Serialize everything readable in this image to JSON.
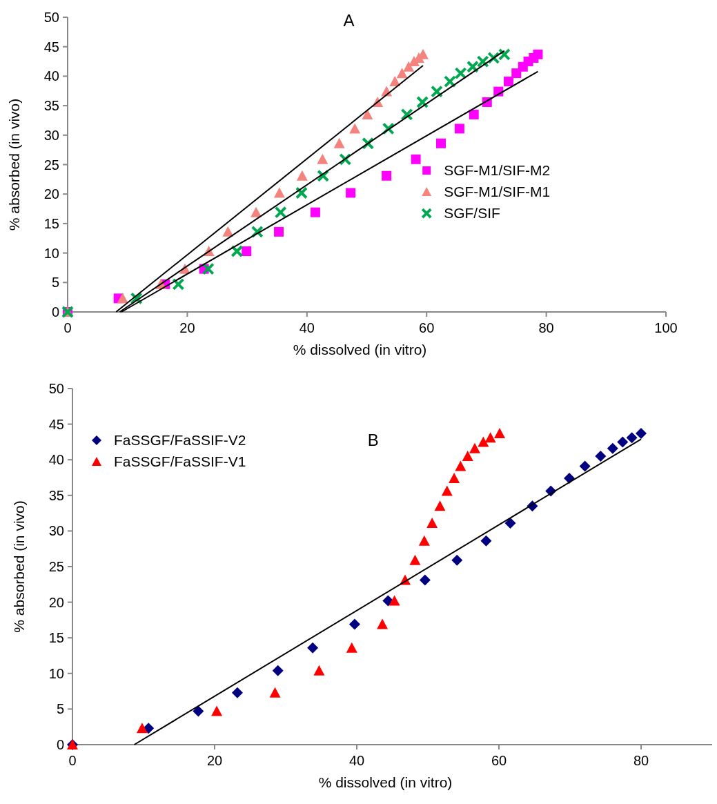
{
  "chart_data": [
    {
      "type": "scatter",
      "title": "A",
      "xlabel": "% dissolved (in vitro)",
      "ylabel": "% absorbed (in vivo)",
      "xlim": [
        0,
        100
      ],
      "xticks": [
        0,
        20,
        40,
        60,
        80,
        100
      ],
      "ylim": [
        0,
        50
      ],
      "yticks": [
        0,
        5,
        10,
        15,
        20,
        25,
        30,
        35,
        40,
        45,
        50
      ],
      "legend": "right",
      "series": [
        {
          "name": "SGF-M1/SIF-M2",
          "color": "#ff00ff",
          "marker": "square",
          "x": [
            0,
            8.5,
            16.3,
            22.8,
            29.9,
            35.3,
            41.4,
            47.3,
            53.3,
            58.2,
            62.4,
            65.5,
            67.9,
            70.1,
            72.0,
            73.7,
            75.0,
            76.1,
            77.0,
            77.9,
            78.6
          ],
          "values": [
            0,
            2.3,
            4.7,
            7.3,
            10.3,
            13.6,
            16.9,
            20.2,
            23.1,
            25.9,
            28.6,
            31.1,
            33.5,
            35.6,
            37.4,
            39.1,
            40.5,
            41.6,
            42.5,
            43.1,
            43.7
          ]
        },
        {
          "name": "SGF-M1/SIF-M1",
          "color": "#f4837d",
          "marker": "triangle",
          "x": [
            0,
            9.2,
            15.6,
            19.6,
            23.6,
            26.8,
            31.5,
            35.4,
            39.2,
            42.6,
            45.4,
            48.0,
            50.1,
            51.8,
            53.3,
            54.7,
            55.9,
            57.0,
            57.9,
            58.7,
            59.4
          ],
          "values": [
            0,
            2.3,
            4.7,
            7.3,
            10.3,
            13.6,
            16.9,
            20.2,
            23.1,
            25.9,
            28.6,
            31.1,
            33.5,
            35.6,
            37.4,
            39.1,
            40.5,
            41.6,
            42.5,
            43.1,
            43.7
          ]
        },
        {
          "name": "SGF/SIF",
          "color": "#00a84f",
          "marker": "cross",
          "x": [
            0,
            11.5,
            18.5,
            23.5,
            28.3,
            31.7,
            35.6,
            39.1,
            42.7,
            46.4,
            50.2,
            53.6,
            56.7,
            59.3,
            61.7,
            63.9,
            65.7,
            67.7,
            69.4,
            71.2,
            73.0
          ],
          "values": [
            0,
            2.3,
            4.7,
            7.3,
            10.3,
            13.6,
            16.9,
            20.2,
            23.1,
            25.9,
            28.6,
            31.1,
            33.5,
            35.6,
            37.4,
            39.1,
            40.5,
            41.6,
            42.5,
            43.1,
            43.7
          ]
        },
        {
          "type": "line",
          "color": "#000000",
          "marker": "none",
          "x": [
            8.1,
            59.4
          ],
          "values": [
            0,
            41.8
          ]
        },
        {
          "type": "line",
          "color": "#000000",
          "marker": "none",
          "x": [
            8.7,
            73.0
          ],
          "values": [
            0,
            44.3
          ]
        },
        {
          "type": "line",
          "color": "#000000",
          "marker": "none",
          "x": [
            9.0,
            78.6
          ],
          "values": [
            0,
            40.8
          ]
        }
      ]
    },
    {
      "type": "scatter",
      "title": "B",
      "xlabel": "% dissolved (in vitro)",
      "ylabel": "% absorbed (in vivo)",
      "xlim": [
        0,
        90
      ],
      "xticks": [
        0,
        20,
        40,
        60,
        80
      ],
      "ylim": [
        0,
        50
      ],
      "yticks": [
        0,
        5,
        10,
        15,
        20,
        25,
        30,
        35,
        40,
        45,
        50
      ],
      "legend": "top left",
      "series": [
        {
          "name": "FaSSGF/FaSSIF-V2",
          "color": "#000080",
          "marker": "diamond",
          "x": [
            0,
            10.7,
            17.7,
            23.2,
            28.9,
            33.8,
            39.7,
            44.4,
            49.6,
            54.1,
            58.2,
            61.6,
            64.7,
            67.3,
            69.9,
            72.1,
            74.3,
            76.0,
            77.4,
            78.7,
            80.0
          ],
          "values": [
            0,
            2.3,
            4.7,
            7.3,
            10.4,
            13.6,
            16.9,
            20.2,
            23.1,
            25.9,
            28.6,
            31.1,
            33.5,
            35.6,
            37.4,
            39.1,
            40.5,
            41.6,
            42.5,
            43.1,
            43.7
          ]
        },
        {
          "name": "FaSSGF/FaSSIF-V1",
          "color": "#ff0000",
          "marker": "triangle",
          "x": [
            0,
            9.8,
            20.3,
            28.5,
            34.7,
            39.3,
            43.6,
            45.3,
            46.8,
            48.2,
            49.5,
            50.6,
            51.7,
            52.7,
            53.7,
            54.6,
            55.6,
            56.6,
            57.8,
            58.8,
            60.1
          ],
          "values": [
            0,
            2.3,
            4.7,
            7.3,
            10.4,
            13.6,
            16.9,
            20.2,
            23.1,
            25.9,
            28.6,
            31.1,
            33.5,
            35.6,
            37.4,
            39.1,
            40.5,
            41.6,
            42.5,
            43.1,
            43.7
          ]
        },
        {
          "type": "line",
          "color": "#000000",
          "marker": "none",
          "x": [
            8.7,
            80.0
          ],
          "values": [
            0,
            42.9
          ]
        }
      ]
    }
  ]
}
